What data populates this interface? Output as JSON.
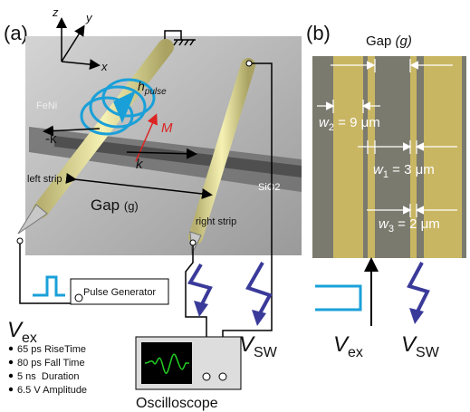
{
  "panel_a": {
    "label": "(a)",
    "axes": {
      "z": "z",
      "y": "y",
      "x": "x"
    },
    "field": {
      "symbol": "h",
      "subscript": "pulse"
    },
    "material": "FeNi",
    "wave_back": "-k",
    "magnetization": "M",
    "wave_forward": "k",
    "left_strip": "left strip",
    "gap": {
      "text": "Gap",
      "symbol": "(g)"
    },
    "substrate": "SiO2",
    "right_strip": "right strip",
    "pulse_generator": "Pulse Generator",
    "excitation": {
      "symbol": "V",
      "subscript": "ex"
    },
    "pulse_specs": [
      "65 ps RiseTime",
      "80 ps Fall Time",
      "5 ns  Duration",
      "6.5 V Amplitude"
    ],
    "detection": {
      "symbol": "V",
      "subscript": "SW"
    },
    "oscilloscope": "Oscilloscope"
  },
  "panel_b": {
    "label": "(b)",
    "gap": {
      "text": "Gap",
      "symbol": "(g)"
    },
    "widths": [
      {
        "symbol": "w",
        "subscript": "2",
        "value": "= 9 μm"
      },
      {
        "symbol": "w",
        "subscript": "1",
        "value": "= 3 μm"
      },
      {
        "symbol": "w",
        "subscript": "3",
        "value": "= 2 μm"
      }
    ],
    "excitation": {
      "symbol": "V",
      "subscript": "ex"
    },
    "detection": {
      "symbol": "V",
      "subscript": "SW"
    }
  }
}
